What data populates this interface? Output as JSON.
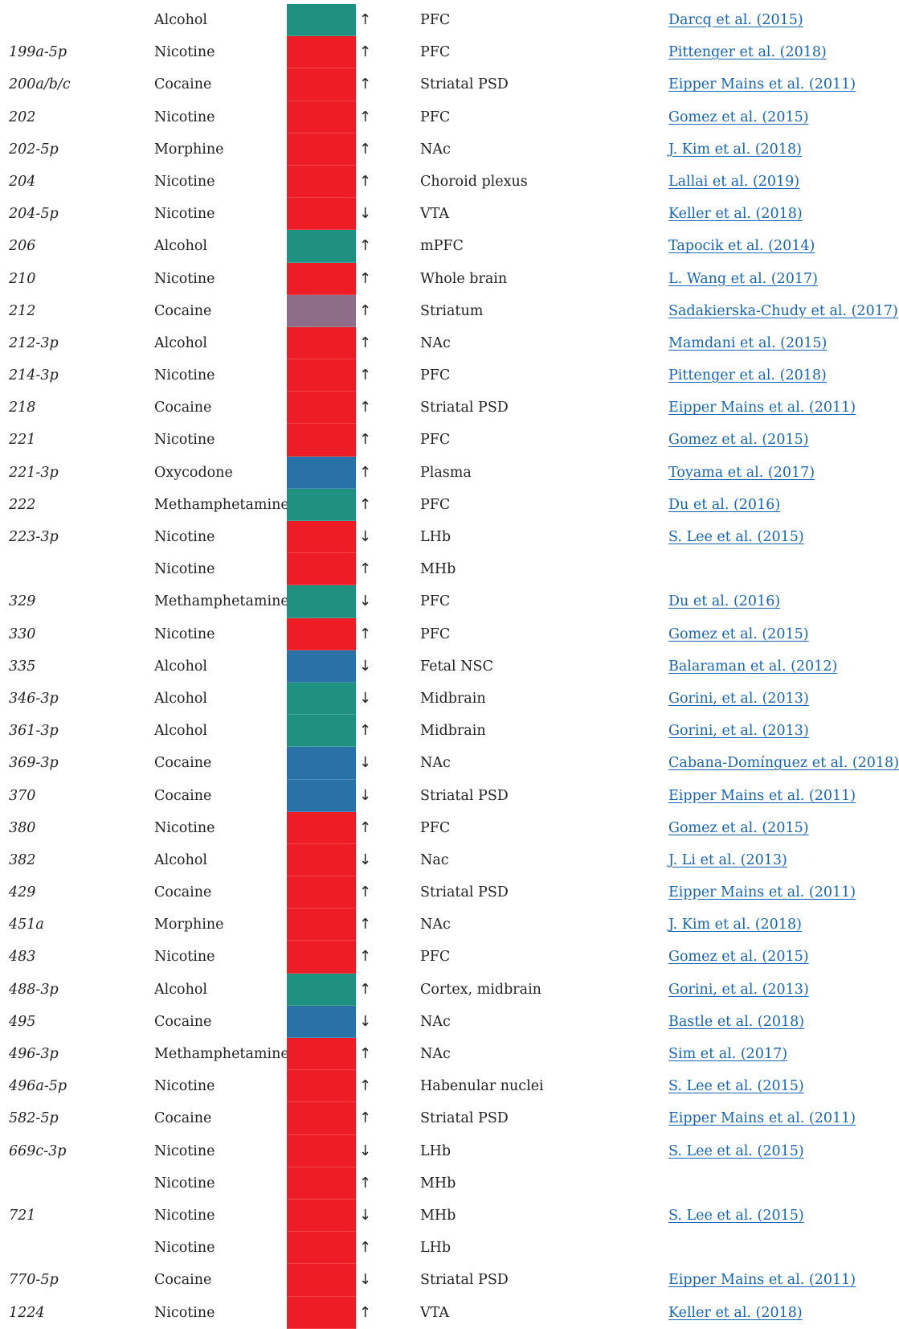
{
  "colors": {
    "red": "#ee1d25",
    "teal": "#1f9180",
    "blue": "#2872a8",
    "purple": "#8e6d88",
    "link": "#1565b4"
  },
  "rows": [
    {
      "mirna": "",
      "drug": "Alcohol",
      "color": "#1f9180",
      "arrow": "↑",
      "region": "PFC",
      "ref": "Darcq et al. (2015)"
    },
    {
      "mirna": "199a-5p",
      "drug": "Nicotine",
      "color": "#ee1d25",
      "arrow": "↑",
      "region": "PFC",
      "ref": "Pittenger et al. (2018)"
    },
    {
      "mirna": "200a/b/c",
      "drug": "Cocaine",
      "color": "#ee1d25",
      "arrow": "↑",
      "region": "Striatal PSD",
      "ref": "Eipper Mains et al. (2011)"
    },
    {
      "mirna": "202",
      "drug": "Nicotine",
      "color": "#ee1d25",
      "arrow": "↑",
      "region": "PFC",
      "ref": "Gomez et al. (2015)"
    },
    {
      "mirna": "202-5p",
      "drug": "Morphine",
      "color": "#ee1d25",
      "arrow": "↑",
      "region": "NAc",
      "ref": "J. Kim et al. (2018)"
    },
    {
      "mirna": "204",
      "drug": "Nicotine",
      "color": "#ee1d25",
      "arrow": "↑",
      "region": "Choroid plexus",
      "ref": "Lallai et al. (2019)"
    },
    {
      "mirna": "204-5p",
      "drug": "Nicotine",
      "color": "#ee1d25",
      "arrow": "↓",
      "region": "VTA",
      "ref": "Keller et al. (2018)"
    },
    {
      "mirna": "206",
      "drug": "Alcohol",
      "color": "#1f9180",
      "arrow": "↑",
      "region": "mPFC",
      "ref": "Tapocik et al. (2014)"
    },
    {
      "mirna": "210",
      "drug": "Nicotine",
      "color": "#ee1d25",
      "arrow": "↑",
      "region": "Whole brain",
      "ref": "L. Wang et al. (2017)"
    },
    {
      "mirna": "212",
      "drug": "Cocaine",
      "color": "#8e6d88",
      "arrow": "↑",
      "region": "Striatum",
      "ref": "Sadakierska-Chudy et al. (2017)"
    },
    {
      "mirna": "212-3p",
      "drug": "Alcohol",
      "color": "#ee1d25",
      "arrow": "↑",
      "region": "NAc",
      "ref": "Mamdani et al. (2015)"
    },
    {
      "mirna": "214-3p",
      "drug": "Nicotine",
      "color": "#ee1d25",
      "arrow": "↑",
      "region": "PFC",
      "ref": "Pittenger et al. (2018)"
    },
    {
      "mirna": "218",
      "drug": "Cocaine",
      "color": "#ee1d25",
      "arrow": "↑",
      "region": "Striatal PSD",
      "ref": "Eipper Mains et al. (2011)"
    },
    {
      "mirna": "221",
      "drug": "Nicotine",
      "color": "#ee1d25",
      "arrow": "↑",
      "region": "PFC",
      "ref": "Gomez et al. (2015)"
    },
    {
      "mirna": "221-3p",
      "drug": "Oxycodone",
      "color": "#2872a8",
      "arrow": "↑",
      "region": "Plasma",
      "ref": "Toyama et al. (2017)"
    },
    {
      "mirna": "222",
      "drug": "Methamphetamine",
      "color": "#1f9180",
      "arrow": "↑",
      "region": "PFC",
      "ref": "Du et al. (2016)"
    },
    {
      "mirna": "223-3p",
      "drug": "Nicotine",
      "color": "#ee1d25",
      "arrow": "↓",
      "region": "LHb",
      "ref": "S. Lee et al. (2015)"
    },
    {
      "mirna": "",
      "drug": "Nicotine",
      "color": "#ee1d25",
      "arrow": "↑",
      "region": "MHb",
      "ref": ""
    },
    {
      "mirna": "329",
      "drug": "Methamphetamine",
      "color": "#1f9180",
      "arrow": "↓",
      "region": "PFC",
      "ref": "Du et al. (2016)"
    },
    {
      "mirna": "330",
      "drug": "Nicotine",
      "color": "#ee1d25",
      "arrow": "↑",
      "region": "PFC",
      "ref": "Gomez et al. (2015)"
    },
    {
      "mirna": "335",
      "drug": "Alcohol",
      "color": "#2872a8",
      "arrow": "↓",
      "region": "Fetal NSC",
      "ref": "Balaraman et al. (2012)"
    },
    {
      "mirna": "346-3p",
      "drug": "Alcohol",
      "color": "#1f9180",
      "arrow": "↓",
      "region": "Midbrain",
      "ref": "Gorini, et al. (2013)"
    },
    {
      "mirna": "361-3p",
      "drug": "Alcohol",
      "color": "#1f9180",
      "arrow": "↑",
      "region": "Midbrain",
      "ref": "Gorini, et al. (2013)"
    },
    {
      "mirna": "369-3p",
      "drug": "Cocaine",
      "color": "#2872a8",
      "arrow": "↓",
      "region": "NAc",
      "ref": "Cabana-Domínguez et al. (2018)"
    },
    {
      "mirna": "370",
      "drug": "Cocaine",
      "color": "#2872a8",
      "arrow": "↓",
      "region": "Striatal PSD",
      "ref": "Eipper Mains et al. (2011)"
    },
    {
      "mirna": "380",
      "drug": "Nicotine",
      "color": "#ee1d25",
      "arrow": "↑",
      "region": "PFC",
      "ref": "Gomez et al. (2015)"
    },
    {
      "mirna": "382",
      "drug": "Alcohol",
      "color": "#ee1d25",
      "arrow": "↓",
      "region": "Nac",
      "ref": "J. Li et al. (2013)"
    },
    {
      "mirna": "429",
      "drug": "Cocaine",
      "color": "#ee1d25",
      "arrow": "↑",
      "region": "Striatal PSD",
      "ref": "Eipper Mains et al. (2011)"
    },
    {
      "mirna": "451a",
      "drug": "Morphine",
      "color": "#ee1d25",
      "arrow": "↑",
      "region": "NAc",
      "ref": "J. Kim et al. (2018)"
    },
    {
      "mirna": "483",
      "drug": "Nicotine",
      "color": "#ee1d25",
      "arrow": "↑",
      "region": "PFC",
      "ref": "Gomez et al. (2015)"
    },
    {
      "mirna": "488-3p",
      "drug": "Alcohol",
      "color": "#1f9180",
      "arrow": "↑",
      "region": "Cortex, midbrain",
      "ref": "Gorini, et al. (2013)"
    },
    {
      "mirna": "495",
      "drug": "Cocaine",
      "color": "#2872a8",
      "arrow": "↓",
      "region": "NAc",
      "ref": "Bastle et al. (2018)"
    },
    {
      "mirna": "496-3p",
      "drug": "Methamphetamine",
      "color": "#ee1d25",
      "arrow": "↑",
      "region": "NAc",
      "ref": "Sim et al. (2017)"
    },
    {
      "mirna": "496a-5p",
      "drug": "Nicotine",
      "color": "#ee1d25",
      "arrow": "↑",
      "region": "Habenular nuclei",
      "ref": "S. Lee et al. (2015)"
    },
    {
      "mirna": "582-5p",
      "drug": "Cocaine",
      "color": "#ee1d25",
      "arrow": "↑",
      "region": "Striatal PSD",
      "ref": "Eipper Mains et al. (2011)"
    },
    {
      "mirna": "669c-3p",
      "drug": "Nicotine",
      "color": "#ee1d25",
      "arrow": "↓",
      "region": "LHb",
      "ref": "S. Lee et al. (2015)"
    },
    {
      "mirna": "",
      "drug": "Nicotine",
      "color": "#ee1d25",
      "arrow": "↑",
      "region": "MHb",
      "ref": ""
    },
    {
      "mirna": "721",
      "drug": "Nicotine",
      "color": "#ee1d25",
      "arrow": "↓",
      "region": "MHb",
      "ref": "S. Lee et al. (2015)"
    },
    {
      "mirna": "",
      "drug": "Nicotine",
      "color": "#ee1d25",
      "arrow": "↑",
      "region": "LHb",
      "ref": ""
    },
    {
      "mirna": "770-5p",
      "drug": "Cocaine",
      "color": "#ee1d25",
      "arrow": "↓",
      "region": "Striatal PSD",
      "ref": "Eipper Mains et al. (2011)"
    },
    {
      "mirna": "1224",
      "drug": "Nicotine",
      "color": "#ee1d25",
      "arrow": "↑",
      "region": "VTA",
      "ref": "Keller et al. (2018)"
    }
  ]
}
